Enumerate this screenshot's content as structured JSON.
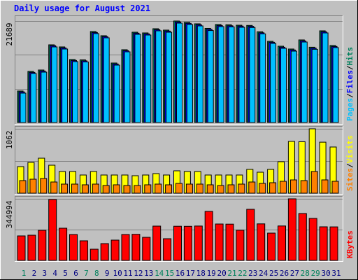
{
  "title": "Daily usage for August 2021",
  "categories": [
    "1",
    "2",
    "3",
    "4",
    "5",
    "6",
    "7",
    "8",
    "9",
    "10",
    "11",
    "12",
    "13",
    "14",
    "15",
    "16",
    "17",
    "18",
    "19",
    "20",
    "21",
    "22",
    "23",
    "24",
    "25",
    "26",
    "27",
    "28",
    "29",
    "30",
    "31"
  ],
  "category_color": "#000080",
  "highlight_categories": [
    "1",
    "7",
    "8",
    "14",
    "15",
    "21",
    "22",
    "28",
    "29"
  ],
  "highlight_color": "#00805c",
  "legend_separator": "/",
  "chart_data": [
    {
      "type": "bar",
      "ylim": [
        0,
        21689
      ],
      "yticks": [
        21689
      ],
      "gridlines": [
        7230,
        14459
      ],
      "series": [
        {
          "name": "Hits",
          "color": "#00805c",
          "values": [
            6732,
            10921,
            11220,
            16606,
            16157,
            13464,
            13390,
            19448,
            18550,
            12716,
            15558,
            19298,
            19149,
            20046,
            19747,
            21689,
            21393,
            21094,
            20112,
            20944,
            20880,
            20794,
            20750,
            19380,
            17354,
            16306,
            15708,
            17653,
            16090,
            19598,
            16456
          ]
        },
        {
          "name": "Files",
          "color": "#0000ff",
          "values": [
            6530,
            10715,
            11010,
            16402,
            15950,
            13260,
            13185,
            19240,
            18346,
            12512,
            15350,
            19090,
            18940,
            19840,
            19541,
            21480,
            21190,
            20888,
            19905,
            20738,
            20673,
            20590,
            20545,
            19175,
            17148,
            16100,
            15502,
            17447,
            15883,
            19390,
            16250
          ]
        },
        {
          "name": "Pages",
          "color": "#00c0ff",
          "values": [
            6280,
            10470,
            10765,
            16150,
            15705,
            13012,
            12940,
            18995,
            18100,
            12268,
            15105,
            18845,
            18697,
            19595,
            19295,
            21235,
            20940,
            20640,
            19660,
            20490,
            20428,
            20343,
            20300,
            18930,
            16900,
            15855,
            15255,
            17200,
            15640,
            19145,
            16005
          ]
        }
      ]
    },
    {
      "type": "bar",
      "ylim": [
        0,
        1062
      ],
      "yticks": [
        1062
      ],
      "gridlines": [
        531
      ],
      "series": [
        {
          "name": "Visits",
          "color": "#ffff00",
          "values": [
            439,
            508,
            577,
            462,
            358,
            358,
            300,
            358,
            300,
            300,
            300,
            289,
            300,
            323,
            300,
            369,
            358,
            358,
            300,
            300,
            300,
            300,
            392,
            346,
            392,
            519,
            854,
            850,
            1062,
            842,
            762
          ]
        },
        {
          "name": "Sites",
          "color": "#ff8000",
          "values": [
            208,
            231,
            242,
            185,
            150,
            150,
            138,
            150,
            127,
            138,
            127,
            127,
            138,
            150,
            138,
            162,
            150,
            150,
            138,
            127,
            138,
            150,
            185,
            162,
            173,
            196,
            219,
            208,
            358,
            219,
            196
          ]
        }
      ]
    },
    {
      "type": "bar",
      "ylim": [
        0,
        344994
      ],
      "yticks": [
        344994
      ],
      "gridlines": [
        172497
      ],
      "series": [
        {
          "name": "KBytes",
          "color": "#ff0000",
          "values": [
            137200,
            141120,
            168560,
            341200,
            180320,
            145040,
            109760,
            62720,
            94080,
            113680,
            145040,
            146200,
            129360,
            192080,
            121520,
            191500,
            190800,
            192500,
            274400,
            203840,
            203000,
            168900,
            286160,
            204500,
            152880,
            192700,
            344994,
            262640,
            235200,
            188160,
            187900
          ]
        }
      ]
    }
  ]
}
